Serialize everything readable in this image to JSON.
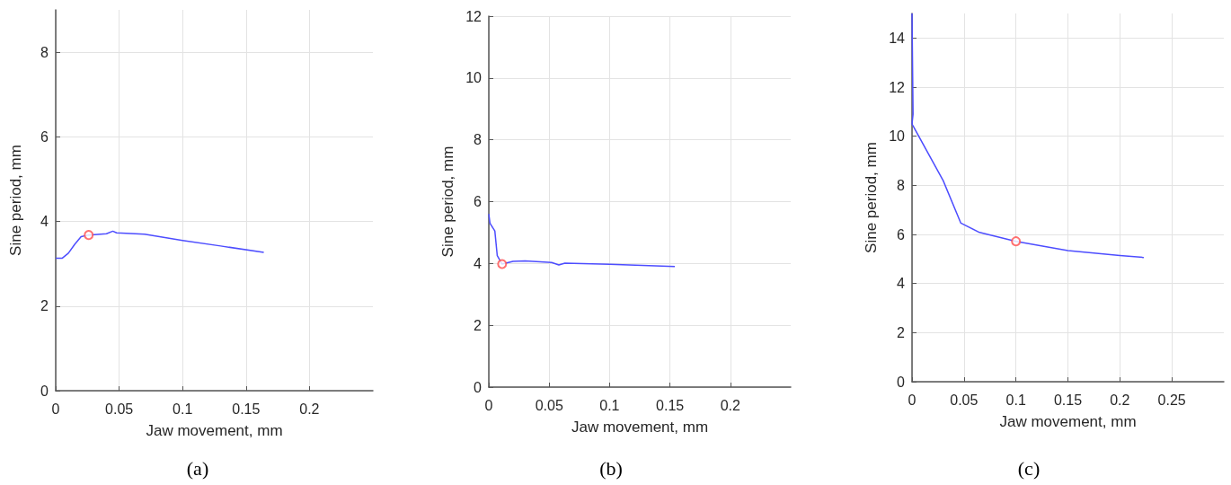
{
  "chart_data": [
    {
      "type": "line",
      "xlabel": "Jaw movement, mm",
      "ylabel": "Sine period, mm",
      "annotations": [
        "(a)"
      ],
      "xlim": [
        0,
        0.25
      ],
      "ylim": [
        0,
        9
      ],
      "xticks": [
        0,
        0.05,
        0.1,
        0.15,
        0.2
      ],
      "yticks": [
        0,
        2,
        4,
        6,
        8
      ],
      "grid": true,
      "series": [
        {
          "color": "#4d4dff",
          "marker": "none",
          "x": [
            0,
            0.005,
            0.01,
            0.015,
            0.02,
            0.026,
            0.04,
            0.045,
            0.048,
            0.07,
            0.1,
            0.13,
            0.164
          ],
          "values": [
            3.13,
            3.13,
            3.25,
            3.46,
            3.64,
            3.68,
            3.71,
            3.77,
            3.73,
            3.7,
            3.55,
            3.42,
            3.27
          ]
        },
        {
          "type": "scatter",
          "color": "#ff4d4d",
          "marker": "circle",
          "x": [
            0.026
          ],
          "values": [
            3.68
          ]
        }
      ]
    },
    {
      "type": "line",
      "xlabel": "Jaw movement, mm",
      "ylabel": "Sine period, mm",
      "annotations": [
        "(b)"
      ],
      "xlim": [
        0,
        0.25
      ],
      "ylim": [
        0,
        12
      ],
      "xticks": [
        0,
        0.05,
        0.1,
        0.15,
        0.2
      ],
      "yticks": [
        0,
        2,
        4,
        6,
        8,
        10,
        12
      ],
      "grid": true,
      "series": [
        {
          "color": "#4d4dff",
          "marker": "none",
          "x": [
            0,
            0.001,
            0.005,
            0.007,
            0.011,
            0.02,
            0.03,
            0.052,
            0.058,
            0.063,
            0.1,
            0.154
          ],
          "values": [
            5.6,
            5.3,
            5.05,
            4.25,
            3.98,
            4.07,
            4.08,
            4.03,
            3.95,
            4.01,
            3.97,
            3.9
          ]
        },
        {
          "type": "scatter",
          "color": "#ff4d4d",
          "marker": "circle",
          "x": [
            0.011
          ],
          "values": [
            3.98
          ]
        }
      ]
    },
    {
      "type": "line",
      "xlabel": "Jaw movement, mm",
      "ylabel": "Sine period, mm",
      "annotations": [
        "(c)"
      ],
      "xlim": [
        0,
        0.3
      ],
      "ylim": [
        0,
        15
      ],
      "xticks": [
        0,
        0.05,
        0.1,
        0.15,
        0.2,
        0.25
      ],
      "yticks": [
        0,
        2,
        4,
        6,
        8,
        10,
        12,
        14
      ],
      "grid": true,
      "series": [
        {
          "color": "#4d4dff",
          "marker": "none",
          "x": [
            0,
            0.001,
            0,
            0.03,
            0.047,
            0.065,
            0.1,
            0.15,
            0.2,
            0.223
          ],
          "values": [
            15,
            10.9,
            10.5,
            8.19,
            6.46,
            6.08,
            5.72,
            5.34,
            5.14,
            5.06
          ]
        },
        {
          "type": "scatter",
          "color": "#ff4d4d",
          "marker": "circle",
          "x": [
            0.1
          ],
          "values": [
            5.72
          ]
        }
      ]
    }
  ]
}
